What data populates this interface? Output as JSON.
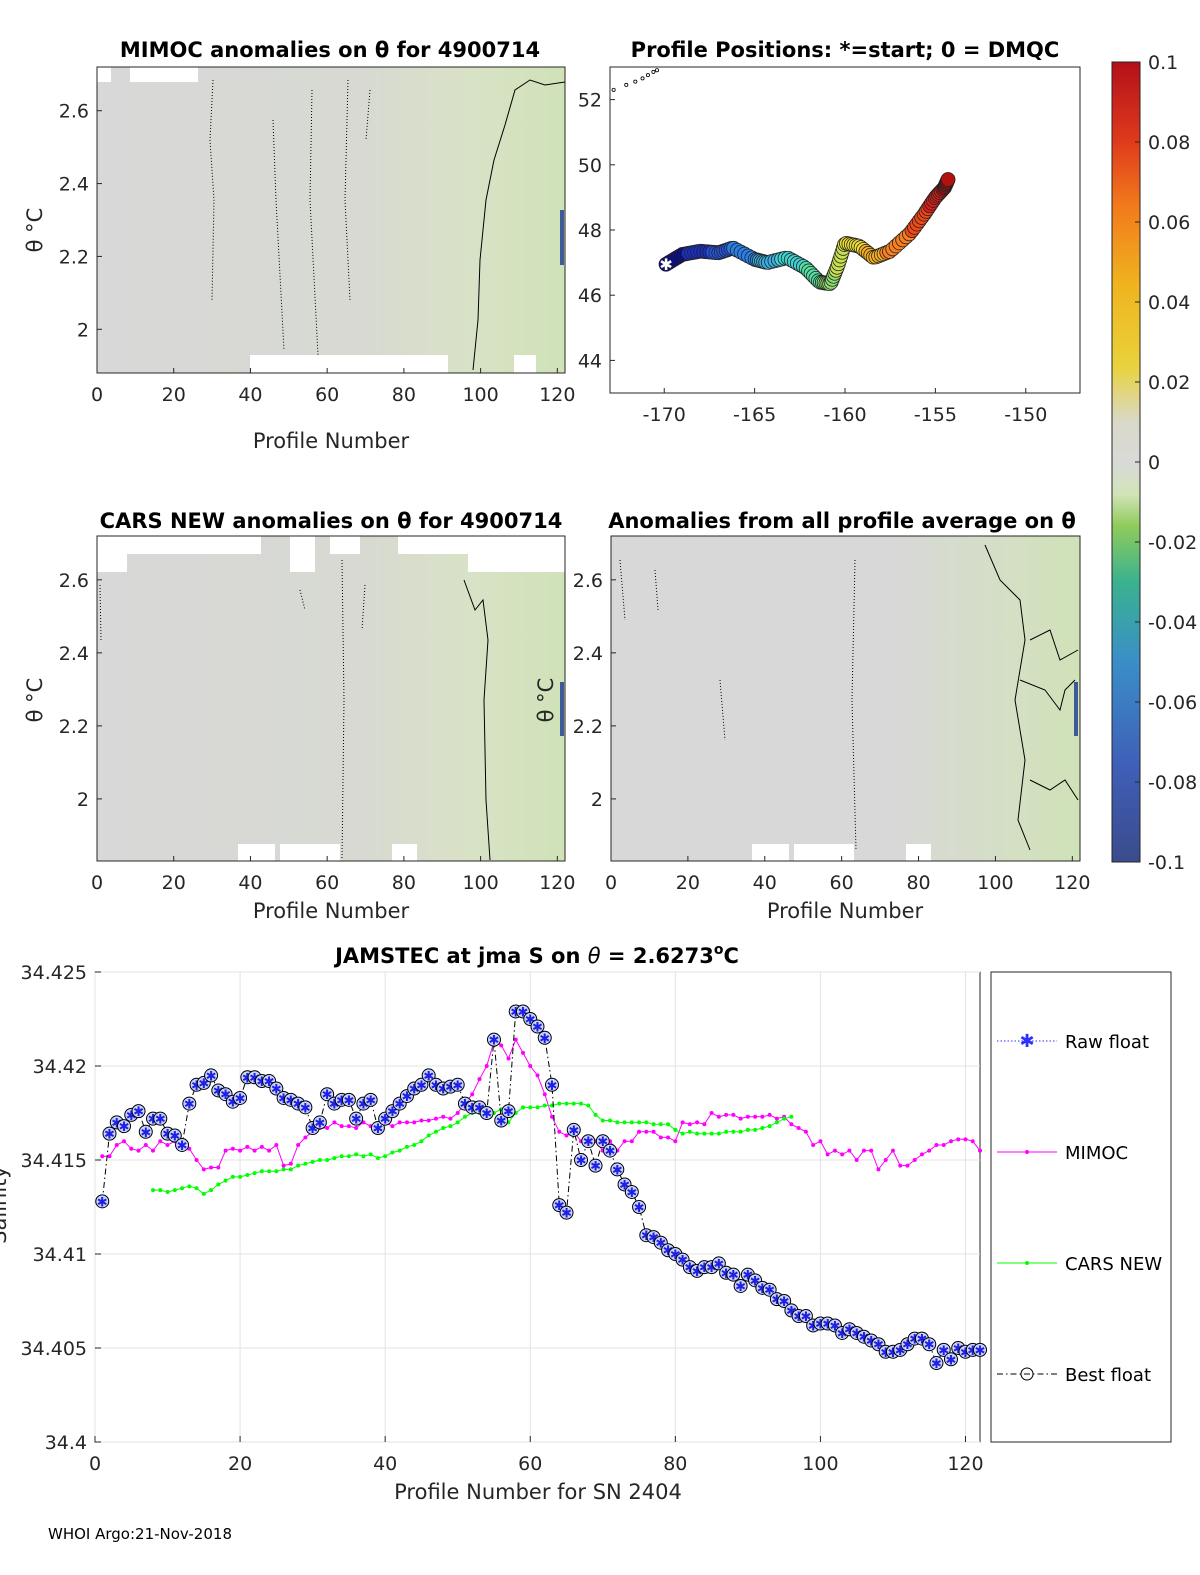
{
  "footer": "WHOI Argo:21-Nov-2018",
  "chart_data": [
    {
      "id": "mimoc",
      "type": "heatmap",
      "title": "MIMOC anomalies on θ  for 4900714",
      "xlabel": "Profile Number",
      "ylabel": "θ °C",
      "xlim": [
        0,
        122
      ],
      "ylim": [
        1.88,
        2.72
      ],
      "xticks": [
        0,
        20,
        40,
        60,
        80,
        100,
        120
      ],
      "yticks": [
        2,
        2.2,
        2.4,
        2.6
      ]
    },
    {
      "id": "positions",
      "type": "scatter",
      "title": "Profile Positions: *=start; 0 = DMQC",
      "xlim": [
        -173,
        -147
      ],
      "ylim": [
        43,
        53
      ],
      "xticks": [
        -170,
        -165,
        -160,
        -155,
        -150
      ],
      "yticks": [
        44,
        46,
        48,
        50,
        52
      ],
      "track_lon": [
        -169.9,
        -169.0,
        -168.0,
        -167.0,
        -166.2,
        -165.0,
        -164.3,
        -163.2,
        -162.2,
        -161.4,
        -160.8,
        -160.4,
        -160.0,
        -159.2,
        -158.4,
        -157.5,
        -156.4,
        -155.6,
        -155.0,
        -154.5,
        -154.3
      ],
      "track_lat": [
        46.95,
        47.25,
        47.35,
        47.3,
        47.45,
        47.1,
        47.0,
        47.15,
        46.85,
        46.4,
        46.35,
        46.9,
        47.6,
        47.5,
        47.15,
        47.35,
        47.9,
        48.5,
        49.0,
        49.3,
        49.55
      ],
      "extra_points_lon": [
        -172.8,
        -172.1,
        -171.6,
        -171.2,
        -170.9,
        -170.6,
        -170.4
      ],
      "extra_points_lat": [
        52.3,
        52.45,
        52.55,
        52.65,
        52.75,
        52.85,
        52.9
      ]
    },
    {
      "id": "colorbar",
      "type": "colorbar",
      "ticks": [
        "0.1",
        "0.08",
        "0.06",
        "0.04",
        "0.02",
        "0",
        "-0.02",
        "-0.04",
        "-0.06",
        "-0.08",
        "-0.1"
      ],
      "range": [
        -0.1,
        0.1
      ]
    },
    {
      "id": "cars",
      "type": "heatmap",
      "title": "CARS NEW anomalies on θ for 4900714",
      "xlabel": "Profile Number",
      "ylabel": "θ °C",
      "xlim": [
        0,
        122
      ],
      "ylim": [
        1.83,
        2.72
      ],
      "xticks": [
        0,
        20,
        40,
        60,
        80,
        100,
        120
      ],
      "yticks": [
        2,
        2.2,
        2.4,
        2.6
      ]
    },
    {
      "id": "allprof",
      "type": "heatmap",
      "title": "Anomalies from all profile average on θ",
      "xlabel": "Profile Number",
      "ylabel": "θ °C",
      "xlim": [
        0,
        122
      ],
      "ylim": [
        1.83,
        2.72
      ],
      "xticks": [
        0,
        20,
        40,
        60,
        80,
        100,
        120
      ],
      "yticks": [
        2,
        2.2,
        2.4,
        2.6
      ]
    },
    {
      "id": "salinity",
      "type": "line",
      "title": "JAMSTEC at jma S on θ = 2.6273°C",
      "title_main": "JAMSTEC at jma S on ",
      "title_theta": "θ",
      "title_value": " = 2.6273",
      "title_sup": "o",
      "title_unit": "C",
      "xlabel": "Profile Number for SN 2404",
      "ylabel": "Salinity",
      "xlim": [
        0,
        122
      ],
      "ylim": [
        34.4,
        34.425
      ],
      "xticks": [
        0,
        20,
        40,
        60,
        80,
        100,
        120
      ],
      "yticks": [
        "34.4",
        "34.405",
        "34.41",
        "34.415",
        "34.42",
        "34.425"
      ],
      "ytick_values": [
        34.4,
        34.405,
        34.41,
        34.415,
        34.42,
        34.425
      ],
      "legend": [
        "Raw float",
        "MIMOC",
        "CARS NEW",
        "Best float"
      ],
      "series": [
        {
          "name": "MIMOC",
          "color": "#ff00ff",
          "x": [
            1,
            2,
            3,
            4,
            5,
            6,
            7,
            8,
            9,
            10,
            11,
            12,
            13,
            14,
            15,
            16,
            17,
            18,
            19,
            20,
            21,
            22,
            23,
            24,
            25,
            26,
            27,
            28,
            29,
            30,
            31,
            32,
            33,
            34,
            35,
            36,
            37,
            38,
            39,
            40,
            41,
            42,
            43,
            44,
            45,
            46,
            47,
            48,
            49,
            50,
            51,
            52,
            53,
            54,
            55,
            56,
            57,
            58,
            59,
            60,
            61,
            62,
            63,
            64,
            65,
            66,
            67,
            68,
            69,
            70,
            71,
            72,
            73,
            74,
            75,
            76,
            77,
            78,
            79,
            80,
            81,
            82,
            83,
            84,
            85,
            86,
            87,
            88,
            89,
            90,
            91,
            92,
            93,
            94,
            95,
            96,
            97,
            98,
            99,
            100,
            101,
            102,
            103,
            104,
            105,
            106,
            107,
            108,
            109,
            110,
            111,
            112,
            113,
            114,
            115,
            116,
            117,
            118,
            119,
            120,
            121,
            122
          ],
          "y": [
            34.4152,
            34.4152,
            34.4158,
            34.416,
            34.4156,
            34.4155,
            34.4158,
            34.4155,
            34.416,
            34.4158,
            34.416,
            34.4158,
            34.4156,
            34.415,
            34.4145,
            34.4146,
            34.4146,
            34.4155,
            34.4156,
            34.4155,
            34.4157,
            34.4155,
            34.4157,
            34.4155,
            34.4158,
            34.4147,
            34.4148,
            34.4158,
            34.4162,
            34.4165,
            34.4167,
            34.4167,
            34.417,
            34.4168,
            34.4168,
            34.4167,
            34.417,
            34.4168,
            34.4167,
            34.417,
            34.4168,
            34.417,
            34.417,
            34.417,
            34.4171,
            34.4171,
            34.4172,
            34.4173,
            34.4172,
            34.4175,
            34.418,
            34.4185,
            34.4193,
            34.42,
            34.4213,
            34.4211,
            34.4204,
            34.4214,
            34.4207,
            34.42,
            34.4195,
            34.4185,
            34.4173,
            34.4165,
            34.4163,
            34.4165,
            34.416,
            34.416,
            34.416,
            34.4155,
            34.416,
            34.4155,
            34.416,
            34.416,
            34.4165,
            34.4165,
            34.4165,
            34.4162,
            34.4162,
            34.416,
            34.417,
            34.4169,
            34.417,
            34.4169,
            34.4175,
            34.4173,
            34.4174,
            34.4174,
            34.4172,
            34.4173,
            34.4173,
            34.4173,
            34.4174,
            34.4172,
            34.4173,
            34.4169,
            34.4167,
            34.4165,
            34.4158,
            34.416,
            34.4153,
            34.4155,
            34.4153,
            34.4155,
            34.415,
            34.4155,
            34.4155,
            34.4145,
            34.415,
            34.4155,
            34.4147,
            34.4147,
            34.415,
            34.4153,
            34.4155,
            34.4158,
            34.4158,
            34.416,
            34.4161,
            34.4161,
            34.416,
            34.4155
          ]
        },
        {
          "name": "CARS NEW",
          "color": "#00ff00",
          "x": [
            8,
            9,
            10,
            11,
            12,
            13,
            14,
            15,
            16,
            17,
            18,
            19,
            20,
            21,
            22,
            23,
            24,
            25,
            26,
            27,
            28,
            29,
            30,
            31,
            32,
            33,
            34,
            35,
            36,
            37,
            38,
            39,
            40,
            41,
            42,
            43,
            44,
            45,
            46,
            47,
            48,
            49,
            50,
            51,
            52,
            53,
            54,
            55,
            56,
            57,
            58,
            59,
            60,
            61,
            62,
            63,
            64,
            65,
            66,
            67,
            68,
            69,
            70,
            71,
            72,
            73,
            74,
            75,
            76,
            77,
            78,
            79,
            80,
            81,
            82,
            83,
            84,
            85,
            86,
            87,
            88,
            89,
            90,
            91,
            92,
            93,
            94,
            95,
            96
          ],
          "y": [
            34.4134,
            34.4134,
            34.4133,
            34.4134,
            34.4135,
            34.4136,
            34.4135,
            34.4132,
            34.4134,
            34.4137,
            34.4139,
            34.4141,
            34.4141,
            34.4142,
            34.4143,
            34.4144,
            34.4144,
            34.4144,
            34.4145,
            34.4145,
            34.4147,
            34.4148,
            34.4149,
            34.415,
            34.415,
            34.4151,
            34.4152,
            34.4152,
            34.4153,
            34.4152,
            34.4153,
            34.4151,
            34.4152,
            34.4154,
            34.4155,
            34.4157,
            34.4158,
            34.416,
            34.4163,
            34.4165,
            34.4167,
            34.4168,
            34.417,
            34.4173,
            34.4175,
            34.4175,
            34.4175,
            34.4175,
            34.4177,
            34.417,
            34.4175,
            34.4178,
            34.4178,
            34.4178,
            34.4179,
            34.4179,
            34.418,
            34.418,
            34.418,
            34.418,
            34.4179,
            34.4174,
            34.4171,
            34.4171,
            34.417,
            34.417,
            34.417,
            34.417,
            34.417,
            34.4169,
            34.4169,
            34.4169,
            34.4166,
            34.4164,
            34.4165,
            34.4164,
            34.4164,
            34.4164,
            34.4164,
            34.4165,
            34.4165,
            34.4165,
            34.4166,
            34.4166,
            34.4167,
            34.4168,
            34.417,
            34.4172,
            34.4173
          ]
        },
        {
          "name": "Best float",
          "color": "#000000",
          "x": [
            1,
            2,
            3,
            4,
            5,
            6,
            7,
            8,
            9,
            10,
            11,
            12,
            13,
            14,
            15,
            16,
            17,
            18,
            19,
            20,
            21,
            22,
            23,
            24,
            25,
            26,
            27,
            28,
            29,
            30,
            31,
            32,
            33,
            34,
            35,
            36,
            37,
            38,
            39,
            40,
            41,
            42,
            43,
            44,
            45,
            46,
            47,
            48,
            49,
            50,
            51,
            52,
            53,
            54,
            55,
            56,
            57,
            58,
            59,
            60,
            61,
            62,
            63,
            64,
            65,
            66,
            67,
            68,
            69,
            70,
            71,
            72,
            73,
            74,
            75,
            76,
            77,
            78,
            79,
            80,
            81,
            82,
            83,
            84,
            85,
            86,
            87,
            88,
            89,
            90,
            91,
            92,
            93,
            94,
            95,
            96,
            97,
            98,
            99,
            100,
            101,
            102,
            103,
            104,
            105,
            106,
            107,
            108,
            109,
            110,
            111,
            112,
            113,
            114,
            115,
            116,
            117,
            118,
            119,
            120,
            121,
            122
          ],
          "y": [
            34.4128,
            34.4164,
            34.417,
            34.4168,
            34.4174,
            34.4176,
            34.4165,
            34.4172,
            34.4172,
            34.4164,
            34.4163,
            34.4158,
            34.418,
            34.419,
            34.4191,
            34.4195,
            34.4187,
            34.4185,
            34.4181,
            34.4183,
            34.4194,
            34.4194,
            34.4192,
            34.4192,
            34.4188,
            34.4183,
            34.4182,
            34.418,
            34.4178,
            34.4167,
            34.417,
            34.4185,
            34.418,
            34.4182,
            34.4182,
            34.4172,
            34.418,
            34.4182,
            34.4167,
            34.4172,
            34.4176,
            34.418,
            34.4184,
            34.4188,
            34.419,
            34.4195,
            34.419,
            34.4188,
            34.4189,
            34.419,
            34.418,
            34.4178,
            34.4178,
            34.4175,
            34.4214,
            34.4171,
            34.4176,
            34.4229,
            34.4229,
            34.4225,
            34.4221,
            34.4215,
            34.419,
            34.4126,
            34.4122,
            34.4166,
            34.415,
            34.416,
            34.4147,
            34.416,
            34.4155,
            34.4145,
            34.4137,
            34.4133,
            34.4125,
            34.411,
            34.4109,
            34.4106,
            34.4102,
            34.41,
            34.4097,
            34.4093,
            34.4091,
            34.4093,
            34.4093,
            34.4095,
            34.409,
            34.4089,
            34.4083,
            34.4089,
            34.4086,
            34.4082,
            34.4081,
            34.4076,
            34.4075,
            34.407,
            34.4067,
            34.4067,
            34.4062,
            34.4063,
            34.4063,
            34.4062,
            34.4058,
            34.406,
            34.4058,
            34.4056,
            34.4054,
            34.4052,
            34.4048,
            34.4048,
            34.4049,
            34.4052,
            34.4055,
            34.4055,
            34.4052,
            34.4042,
            34.4049,
            34.4044,
            34.405,
            34.4048,
            34.4049,
            34.4049
          ]
        }
      ]
    }
  ]
}
